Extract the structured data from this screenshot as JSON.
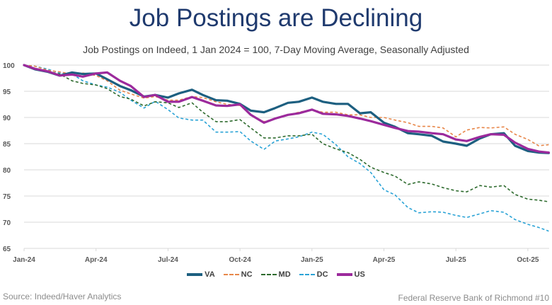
{
  "chart_data": {
    "type": "line",
    "title": "Job Postings are Declining",
    "subtitle": "Job Postings on Indeed, 1 Jan 2024 = 100, 7-Day Moving Average, Seasonally Adjusted",
    "xlabel": "",
    "ylabel": "",
    "ylim": [
      65,
      100
    ],
    "yticks": [
      "100",
      "95",
      "90",
      "85",
      "80",
      "75",
      "70",
      "65"
    ],
    "xticks": [
      "2024-01-01",
      "2024-04-01",
      "2024-07-01",
      "2024-10-01",
      "2025-01-01",
      "2025-04-01",
      "2025-07-01",
      "2025-10-01"
    ],
    "xtick_labels": [
      "Jan-24",
      "Apr-24",
      "Jul-24",
      "Oct-24",
      "Jan-25",
      "Apr-25",
      "Jul-25",
      "Oct-25"
    ],
    "grid": "horizontal",
    "legend_position": "bottom",
    "x": [
      "2024-01-01",
      "2024-01-15",
      "2024-02-01",
      "2024-02-15",
      "2024-03-01",
      "2024-03-15",
      "2024-04-01",
      "2024-04-15",
      "2024-05-01",
      "2024-05-15",
      "2024-06-01",
      "2024-06-15",
      "2024-07-01",
      "2024-07-15",
      "2024-08-01",
      "2024-08-15",
      "2024-09-01",
      "2024-09-15",
      "2024-10-01",
      "2024-10-15",
      "2024-11-01",
      "2024-11-15",
      "2024-12-01",
      "2024-12-15",
      "2025-01-01",
      "2025-01-15",
      "2025-02-01",
      "2025-02-15",
      "2025-03-01",
      "2025-03-15",
      "2025-04-01",
      "2025-04-15",
      "2025-05-01",
      "2025-05-15",
      "2025-06-01",
      "2025-06-15",
      "2025-07-01",
      "2025-07-15",
      "2025-08-01",
      "2025-08-15",
      "2025-09-01",
      "2025-09-15",
      "2025-10-01",
      "2025-10-15",
      "2025-10-28"
    ],
    "series": [
      {
        "name": "VA",
        "color": "#1d5f80",
        "style": "solid",
        "values": [
          100,
          99.2,
          98.7,
          98.0,
          98.6,
          98.3,
          98.4,
          97.3,
          96.0,
          95.2,
          94.0,
          94.3,
          93.8,
          94.6,
          95.3,
          94.3,
          93.3,
          93.2,
          92.6,
          91.3,
          91.0,
          91.8,
          92.8,
          93.0,
          93.8,
          93.0,
          92.6,
          92.6,
          90.8,
          91.0,
          89.0,
          88.2,
          87.0,
          86.8,
          86.5,
          85.4,
          85.0,
          84.6,
          86.0,
          86.8,
          87.0,
          84.6,
          83.6,
          83.3,
          83.2
        ]
      },
      {
        "name": "NC",
        "color": "#e8874a",
        "style": "dashed",
        "values": [
          100,
          99.8,
          99.0,
          98.7,
          98.3,
          98.5,
          98.0,
          97.0,
          95.2,
          94.5,
          93.7,
          94.0,
          93.3,
          93.3,
          94.0,
          93.8,
          93.0,
          92.5,
          92.3,
          90.5,
          89.2,
          89.8,
          90.5,
          91.0,
          91.5,
          91.0,
          91.0,
          90.5,
          90.5,
          90.0,
          90.0,
          89.5,
          89.0,
          88.3,
          88.3,
          88.0,
          86.3,
          87.6,
          88.1,
          88.0,
          88.2,
          86.8,
          85.8,
          84.6,
          84.8
        ]
      },
      {
        "name": "MD",
        "color": "#2e6b2e",
        "style": "dashed",
        "values": [
          100,
          99.3,
          98.8,
          98.3,
          97.0,
          96.5,
          96.2,
          95.5,
          94.0,
          93.5,
          92.2,
          93.0,
          92.8,
          91.9,
          92.8,
          91.0,
          89.2,
          89.2,
          89.6,
          88.0,
          86.1,
          86.1,
          86.5,
          86.5,
          86.8,
          85.0,
          84.0,
          83.3,
          82.0,
          80.5,
          79.5,
          78.8,
          77.2,
          77.7,
          77.3,
          76.6,
          76.0,
          75.8,
          77.0,
          76.7,
          77.0,
          75.3,
          74.4,
          74.2,
          73.9
        ]
      },
      {
        "name": "DC",
        "color": "#2aa3d6",
        "style": "dashed",
        "values": [
          100,
          99.8,
          99.2,
          98.5,
          98.3,
          97.0,
          96.2,
          95.8,
          94.8,
          93.3,
          91.8,
          93.1,
          91.5,
          89.9,
          89.5,
          89.5,
          87.2,
          87.2,
          87.3,
          85.5,
          83.9,
          85.5,
          85.9,
          86.3,
          87.2,
          86.8,
          84.8,
          82.5,
          81.2,
          79.5,
          76.2,
          75.2,
          72.8,
          71.8,
          72.0,
          71.9,
          71.3,
          70.9,
          71.6,
          72.2,
          71.9,
          70.5,
          69.6,
          69.0,
          68.3
        ]
      },
      {
        "name": "US",
        "color": "#9c2a9c",
        "style": "solid",
        "values": [
          100,
          99.3,
          98.8,
          98.0,
          98.2,
          97.8,
          98.4,
          98.6,
          97.0,
          96.0,
          93.9,
          94.3,
          93.0,
          93.0,
          93.9,
          93.2,
          92.3,
          92.2,
          92.5,
          90.5,
          89.0,
          89.8,
          90.5,
          90.8,
          91.5,
          90.7,
          90.6,
          90.3,
          89.8,
          89.3,
          88.6,
          88.0,
          87.4,
          87.3,
          87.0,
          86.8,
          85.8,
          85.5,
          86.3,
          86.8,
          86.7,
          85.2,
          84.0,
          83.5,
          83.3
        ]
      }
    ]
  },
  "footer": {
    "source": "Source: Indeed/Haver Analytics",
    "credit": "Federal Reserve Bank of Richmond #10"
  }
}
